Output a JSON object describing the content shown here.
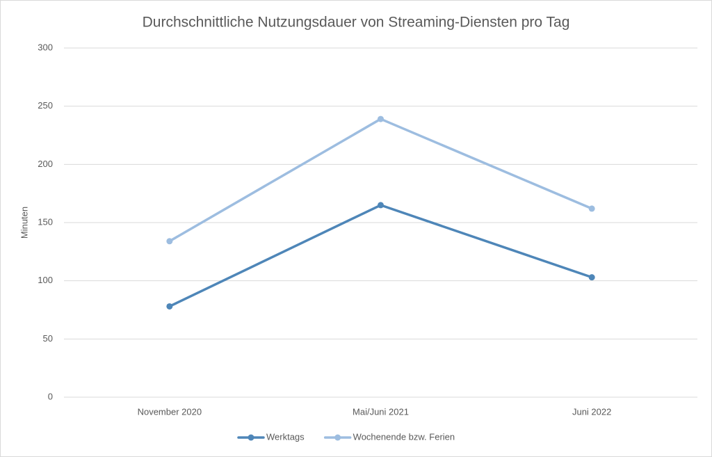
{
  "chart_data": {
    "type": "line",
    "title": "Durchschnittliche Nutzungsdauer von Streaming-Diensten pro Tag",
    "y_label": "Minuten",
    "categories": [
      "November 2020",
      "Mai/Juni 2021",
      "Juni 2022"
    ],
    "series": [
      {
        "name": "Werktags",
        "color": "#4e86b8",
        "values": [
          78,
          165,
          103
        ]
      },
      {
        "name": "Wochenende bzw. Ferien",
        "color": "#9dbde0",
        "values": [
          134,
          239,
          162
        ]
      }
    ],
    "ylim": [
      0,
      300
    ],
    "yticks": [
      0,
      50,
      100,
      150,
      200,
      250,
      300
    ],
    "grid": true
  }
}
